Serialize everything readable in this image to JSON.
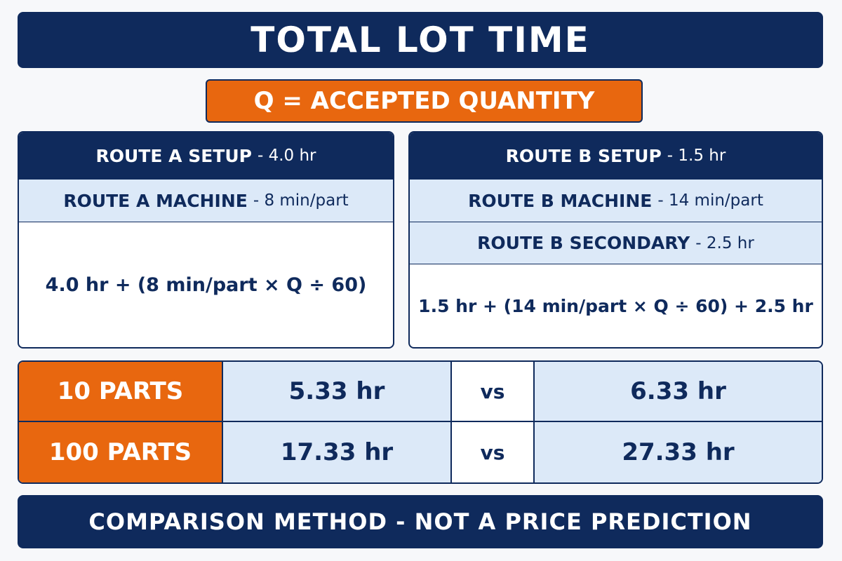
{
  "header": {
    "title": "TOTAL LOT TIME",
    "subtitle": "Q = ACCEPTED QUANTITY"
  },
  "route_a": {
    "setup": {
      "label": "ROUTE A SETUP",
      "detail": "- 4.0 hr"
    },
    "machine": {
      "label": "ROUTE A MACHINE",
      "detail": "- 8 min/part"
    },
    "formula": "4.0 hr + (8 min/part × Q ÷ 60)"
  },
  "route_b": {
    "setup": {
      "label": "ROUTE B SETUP",
      "detail": "- 1.5 hr"
    },
    "machine": {
      "label": "ROUTE B MACHINE",
      "detail": "- 14 min/part"
    },
    "secondary": {
      "label": "ROUTE B SECONDARY",
      "detail": "- 2.5 hr"
    },
    "formula": "1.5 hr + (14 min/part × Q ÷ 60) + 2.5 hr"
  },
  "table": {
    "rows": [
      [
        "10 PARTS",
        "5.33 hr",
        "vs",
        "6.33 hr"
      ],
      [
        "100 PARTS",
        "17.33 hr",
        "vs",
        "27.33 hr"
      ]
    ]
  },
  "footer": "COMPARISON METHOD - NOT A PRICE PREDICTION"
}
